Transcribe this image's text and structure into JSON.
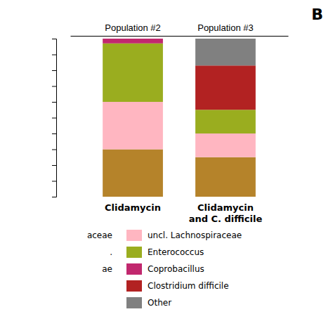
{
  "chart_data": {
    "type": "bar",
    "stacked": true,
    "title": "B",
    "categories": [
      "Population #2",
      "Population #3"
    ],
    "series": [
      {
        "color": "#b5832a",
        "values": [
          0.3,
          0.25
        ]
      },
      {
        "name": "uncl. Lachnospiraceae",
        "color": "#ffb6c1",
        "values": [
          0.3,
          0.15
        ]
      },
      {
        "name": "Enterococcus",
        "color": "#9aad1f",
        "values": [
          0.37,
          0.15
        ]
      },
      {
        "name": "Coprobacillus",
        "color": "#c1286e",
        "values": [
          0.03,
          null
        ]
      },
      {
        "name": "Clostridium difficile",
        "color": "#b22222",
        "values": [
          null,
          0.28
        ]
      },
      {
        "name": "Other",
        "color": "#808080",
        "values": [
          null,
          0.17
        ]
      }
    ],
    "ylim": [
      0,
      1
    ],
    "yticks": [
      0,
      0.1,
      0.2,
      0.3,
      0.4,
      0.5,
      0.6,
      0.7,
      0.8,
      0.9,
      1
    ],
    "tick_labels": false,
    "grid": false,
    "legend": "bottom",
    "annotations": [
      {
        "x": "Population #2",
        "text": "Clidamycin"
      },
      {
        "x": "Population #3",
        "text": "Clidamycin\nand C. difficile"
      },
      {
        "text": "aceae"
      },
      {
        "text": "."
      },
      {
        "text": "ae"
      }
    ]
  }
}
